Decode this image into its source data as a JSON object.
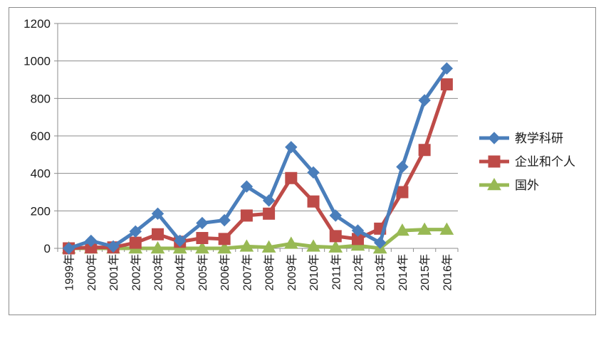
{
  "chart_data": {
    "type": "line",
    "title": "",
    "xlabel": "",
    "ylabel": "",
    "ylim": [
      0,
      1200
    ],
    "yticks": [
      0,
      200,
      400,
      600,
      800,
      1000,
      1200
    ],
    "grid": true,
    "legend_position": "right",
    "categories": [
      "1999年",
      "2000年",
      "2001年",
      "2002年",
      "2003年",
      "2004年",
      "2005年",
      "2006年",
      "2007年",
      "2008年",
      "2009年",
      "2010年",
      "2011年",
      "2012年",
      "2013年",
      "2014年",
      "2015年",
      "2016年"
    ],
    "series": [
      {
        "name": "教学科研",
        "color": "#4a7ebb",
        "marker": "diamond",
        "values": [
          0,
          40,
          10,
          90,
          185,
          40,
          135,
          150,
          330,
          255,
          540,
          405,
          175,
          95,
          30,
          435,
          790,
          960
        ]
      },
      {
        "name": "企业和个人",
        "color": "#be4b48",
        "marker": "square",
        "values": [
          0,
          5,
          5,
          30,
          75,
          35,
          55,
          50,
          175,
          185,
          375,
          250,
          65,
          50,
          105,
          300,
          525,
          875
        ]
      },
      {
        "name": "国外",
        "color": "#98b954",
        "marker": "triangle",
        "values": [
          0,
          0,
          0,
          0,
          0,
          0,
          0,
          0,
          10,
          5,
          25,
          10,
          5,
          15,
          0,
          95,
          100,
          100
        ]
      }
    ]
  }
}
